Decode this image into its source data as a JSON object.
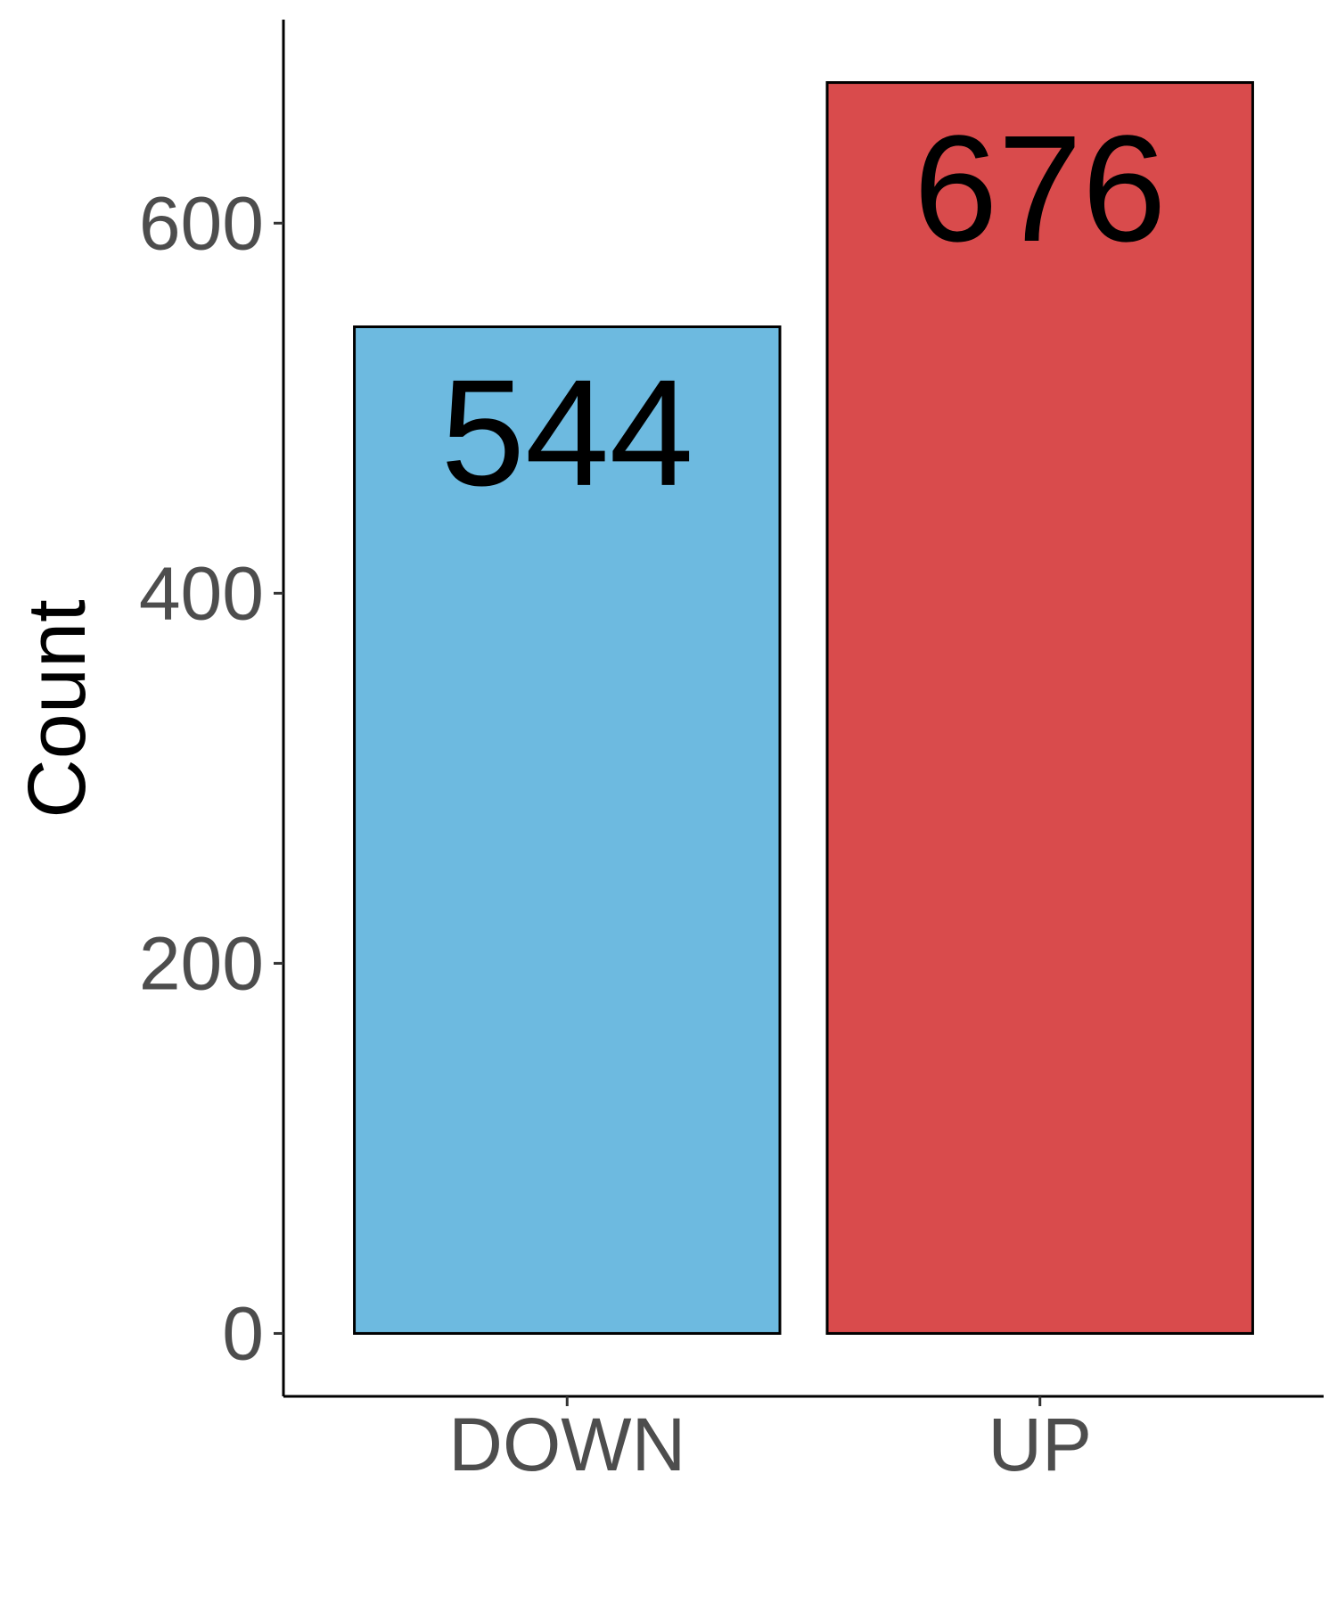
{
  "chart_data": {
    "type": "bar",
    "title": "",
    "xlabel": "",
    "ylabel": "Count",
    "categories": [
      "DOWN",
      "UP"
    ],
    "values": [
      544,
      676
    ],
    "data_labels": [
      "544",
      "676"
    ],
    "colors": [
      "#6dbae0",
      "#d94b4c"
    ],
    "ylim": [
      -34,
      710
    ],
    "yticks": [
      0,
      200,
      400,
      600
    ],
    "ytick_labels": [
      "0",
      "200",
      "400",
      "600"
    ],
    "grid": false,
    "legend": "none"
  }
}
